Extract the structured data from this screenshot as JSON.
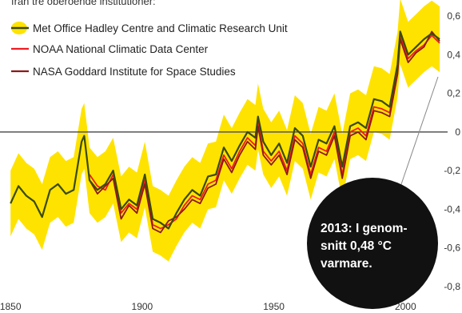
{
  "header": {
    "title_fragment": "från tre oberoende institutioner:"
  },
  "legend": [
    {
      "label": "Met Office Hadley Centre and Climatic Research Unit",
      "color": "#3a4a0a",
      "band_color": "#ffe300"
    },
    {
      "label": "NOAA National Climatic Data Center",
      "color": "#ee1c24"
    },
    {
      "label": "NASA Goddard Institute for Space Studies",
      "color": "#8b1a1a"
    }
  ],
  "callout": {
    "lines": [
      "2013: I genom-",
      "snitt 0,48 °C",
      "varmare."
    ]
  },
  "colors": {
    "band": "#ffe300",
    "hadcrut": "#3a4a0a",
    "noaa": "#ee1c24",
    "nasa": "#8b1a1a",
    "zero_line": "#555555",
    "callout_bg": "#111111"
  },
  "chart_data": {
    "type": "line",
    "title": "",
    "xlabel": "",
    "ylabel": "",
    "xlim": [
      1846,
      2016
    ],
    "ylim": [
      -0.85,
      0.65
    ],
    "x_ticks": [
      {
        "value": 1850,
        "label": "1850"
      },
      {
        "value": 1900,
        "label": "1900"
      },
      {
        "value": 1950,
        "label": "1950"
      },
      {
        "value": 2000,
        "label": "2000"
      }
    ],
    "y_ticks": [
      {
        "value": 0.6,
        "label": "0,6"
      },
      {
        "value": 0.4,
        "label": "0,4"
      },
      {
        "value": 0.2,
        "label": "0,2"
      },
      {
        "value": 0,
        "label": "0"
      },
      {
        "value": -0.2,
        "label": "-0,2"
      },
      {
        "value": -0.4,
        "label": "-0,4"
      },
      {
        "value": -0.6,
        "label": "-0,6"
      },
      {
        "value": -0.8,
        "label": "-0,8"
      }
    ],
    "zero_line": true,
    "legend_position": "top-left",
    "anomaly_2013": 0.48,
    "series": [
      {
        "name": "Met Office Hadley Centre and Climatic Research Unit",
        "x": [
          1850,
          1853,
          1856,
          1859,
          1862,
          1865,
          1868,
          1871,
          1874,
          1877,
          1878,
          1880,
          1883,
          1886,
          1889,
          1892,
          1895,
          1898,
          1901,
          1904,
          1907,
          1910,
          1913,
          1916,
          1919,
          1922,
          1925,
          1928,
          1931,
          1934,
          1937,
          1940,
          1943,
          1944,
          1946,
          1949,
          1952,
          1955,
          1958,
          1961,
          1964,
          1967,
          1970,
          1973,
          1976,
          1979,
          1982,
          1985,
          1988,
          1991,
          1994,
          1997,
          1998,
          2001,
          2004,
          2007,
          2010,
          2013
        ],
        "values": [
          -0.37,
          -0.28,
          -0.33,
          -0.36,
          -0.44,
          -0.3,
          -0.27,
          -0.32,
          -0.3,
          -0.05,
          -0.02,
          -0.25,
          -0.3,
          -0.27,
          -0.2,
          -0.4,
          -0.35,
          -0.38,
          -0.22,
          -0.45,
          -0.47,
          -0.5,
          -0.42,
          -0.35,
          -0.3,
          -0.33,
          -0.23,
          -0.22,
          -0.08,
          -0.15,
          -0.07,
          0.0,
          -0.03,
          0.08,
          -0.05,
          -0.12,
          -0.06,
          -0.16,
          0.02,
          -0.02,
          -0.18,
          -0.04,
          -0.06,
          0.03,
          -0.18,
          0.03,
          0.05,
          0.02,
          0.17,
          0.16,
          0.13,
          0.35,
          0.52,
          0.4,
          0.44,
          0.48,
          0.51,
          0.48
        ],
        "band_half_width": 0.17
      },
      {
        "name": "NOAA National Climatic Data Center",
        "x": [
          1880,
          1883,
          1886,
          1889,
          1892,
          1895,
          1898,
          1901,
          1904,
          1907,
          1910,
          1913,
          1916,
          1919,
          1922,
          1925,
          1928,
          1931,
          1934,
          1937,
          1940,
          1943,
          1944,
          1946,
          1949,
          1952,
          1955,
          1958,
          1961,
          1964,
          1967,
          1970,
          1973,
          1976,
          1979,
          1982,
          1985,
          1988,
          1991,
          1994,
          1997,
          1998,
          2001,
          2004,
          2007,
          2010,
          2013
        ],
        "values": [
          -0.22,
          -0.28,
          -0.3,
          -0.22,
          -0.42,
          -0.37,
          -0.4,
          -0.25,
          -0.48,
          -0.5,
          -0.48,
          -0.45,
          -0.38,
          -0.33,
          -0.35,
          -0.27,
          -0.25,
          -0.12,
          -0.19,
          -0.1,
          -0.03,
          -0.07,
          0.05,
          -0.1,
          -0.15,
          -0.1,
          -0.2,
          -0.02,
          -0.06,
          -0.22,
          -0.08,
          -0.1,
          0.0,
          -0.22,
          0.0,
          0.02,
          -0.02,
          0.13,
          0.12,
          0.1,
          0.32,
          0.5,
          0.38,
          0.42,
          0.45,
          0.5,
          0.46
        ]
      },
      {
        "name": "NASA Goddard Institute for Space Studies",
        "x": [
          1880,
          1883,
          1886,
          1889,
          1892,
          1895,
          1898,
          1901,
          1904,
          1907,
          1910,
          1913,
          1916,
          1919,
          1922,
          1925,
          1928,
          1931,
          1934,
          1937,
          1940,
          1943,
          1944,
          1946,
          1949,
          1952,
          1955,
          1958,
          1961,
          1964,
          1967,
          1970,
          1973,
          1976,
          1979,
          1982,
          1985,
          1988,
          1991,
          1994,
          1997,
          1998,
          2001,
          2004,
          2007,
          2010,
          2013
        ],
        "values": [
          -0.25,
          -0.32,
          -0.28,
          -0.24,
          -0.45,
          -0.38,
          -0.42,
          -0.27,
          -0.5,
          -0.52,
          -0.46,
          -0.44,
          -0.4,
          -0.35,
          -0.37,
          -0.29,
          -0.27,
          -0.14,
          -0.21,
          -0.12,
          -0.05,
          -0.09,
          0.03,
          -0.12,
          -0.17,
          -0.12,
          -0.22,
          -0.04,
          -0.08,
          -0.24,
          -0.1,
          -0.12,
          -0.02,
          -0.24,
          -0.02,
          0.0,
          -0.04,
          0.11,
          0.1,
          0.08,
          0.3,
          0.48,
          0.36,
          0.41,
          0.44,
          0.52,
          0.47
        ]
      }
    ]
  }
}
